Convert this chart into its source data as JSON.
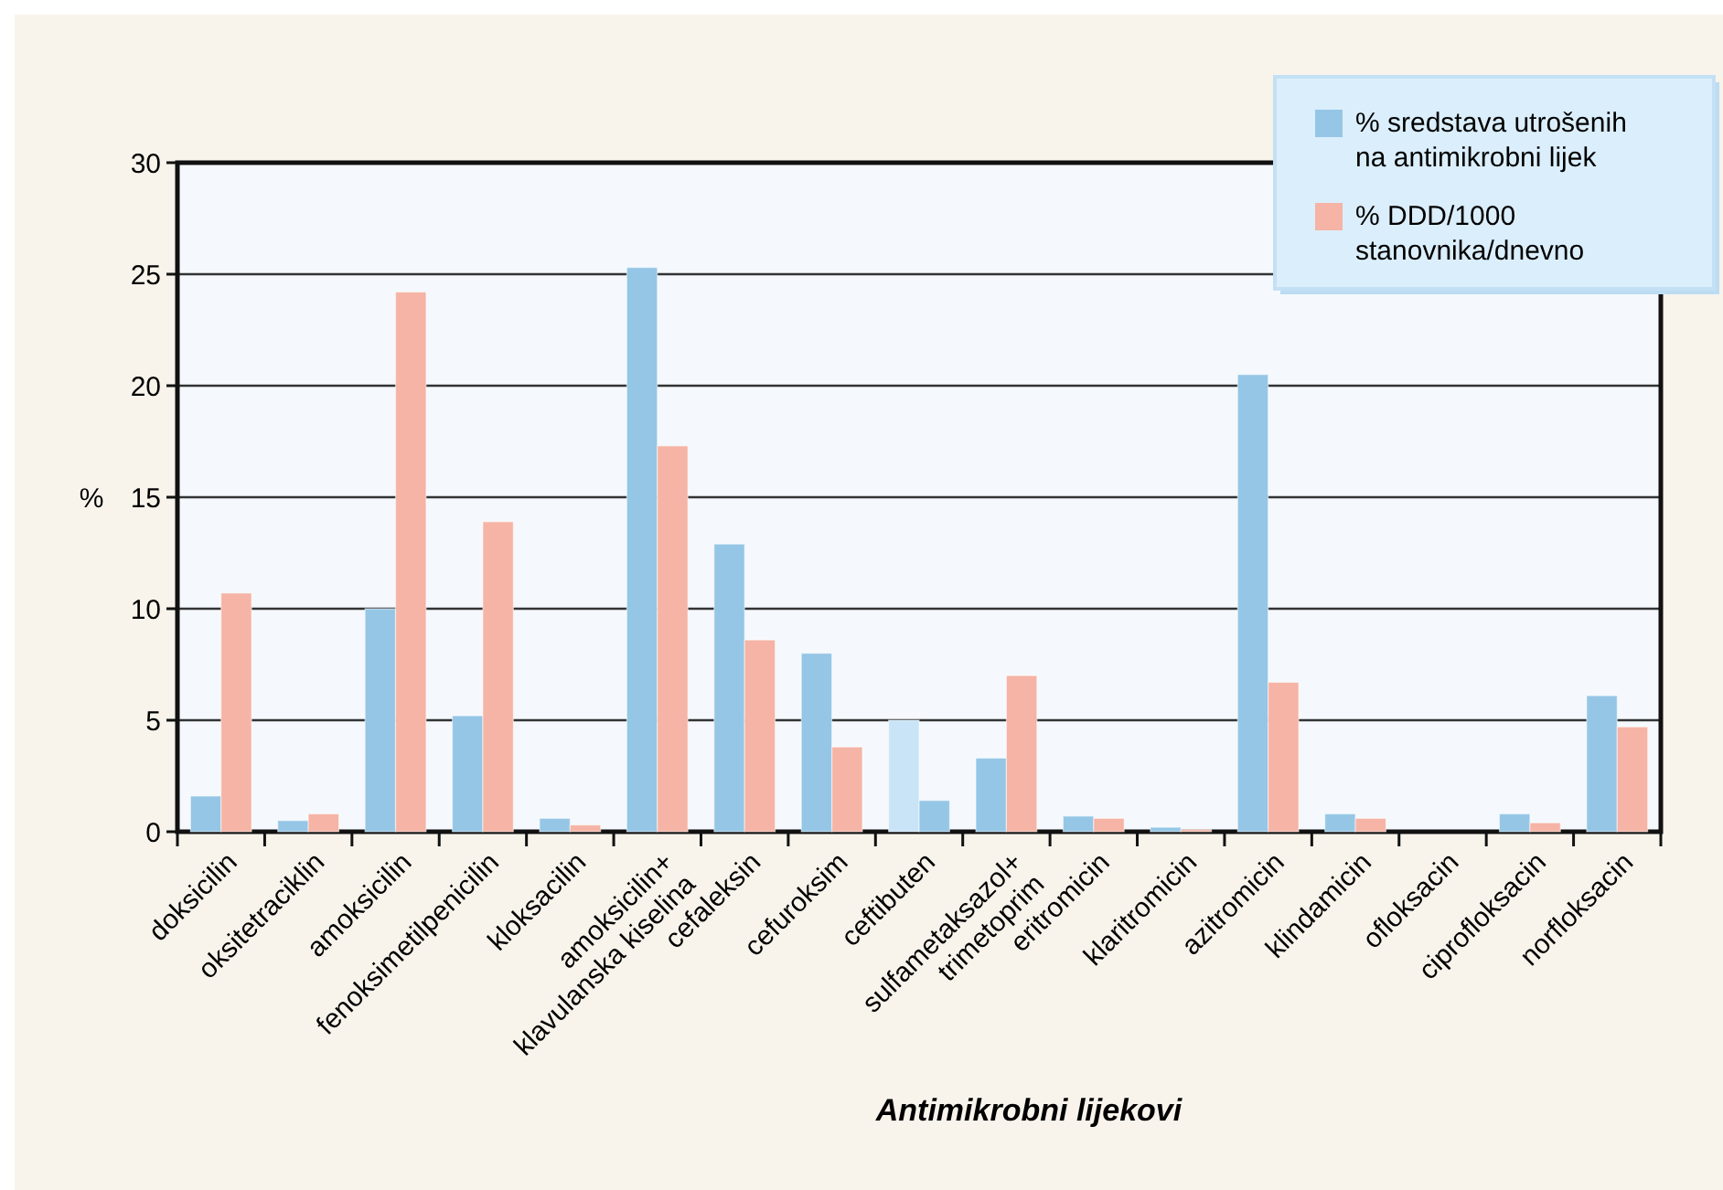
{
  "chart_data": {
    "type": "bar",
    "xlabel": "Antimikrobni lijekovi",
    "ylabel": "%",
    "categories": [
      "doksicilin",
      "oksitetraciklin",
      "amoksicilin",
      "fenoksimetilpenicilin",
      "kloksacilin",
      "amoksicilin+\nklavulanska kiselina",
      "cefaleksin",
      "cefuroksim",
      "ceftibuten",
      "sulfametaksazol+\ntrimetoprim",
      "eritromicin",
      "klaritromicin",
      "azitromicin",
      "klindamicin",
      "ofloksacin",
      "ciprofloksacin",
      "norfloksacin"
    ],
    "series": [
      {
        "name": "% sredstava utrošenih\nna antimikrobni lijek",
        "color": "#95c6e6",
        "colors": [
          "#95c6e6",
          "#95c6e6",
          "#95c6e6",
          "#95c6e6",
          "#95c6e6",
          "#95c6e6",
          "#95c6e6",
          "#95c6e6",
          "#c8e4f6",
          "#95c6e6",
          "#95c6e6",
          "#95c6e6",
          "#95c6e6",
          "#95c6e6",
          "#95c6e6",
          "#95c6e6",
          "#95c6e6"
        ],
        "values": [
          1.6,
          0.5,
          10.0,
          5.2,
          0.6,
          25.3,
          12.9,
          8.0,
          5.0,
          3.3,
          0.7,
          0.2,
          20.5,
          0.8,
          0,
          0.8,
          6.1
        ]
      },
      {
        "name": "% DDD/1000\nstanovnika/dnevno",
        "color": "#f5b4a5",
        "colors": [
          "#f5b4a5",
          "#f5b4a5",
          "#f5b4a5",
          "#f5b4a5",
          "#f5b4a5",
          "#f5b4a5",
          "#f5b4a5",
          "#f5b4a5",
          "#95c6e6",
          "#f5b4a5",
          "#f5b4a5",
          "#f5b4a5",
          "#f5b4a5",
          "#f5b4a5",
          "#f5b4a5",
          "#f5b4a5",
          "#f5b4a5"
        ],
        "values": [
          10.7,
          0.8,
          24.2,
          13.9,
          0.3,
          17.3,
          8.6,
          3.8,
          1.4,
          7.0,
          0.6,
          0.1,
          6.7,
          0.6,
          0,
          0.4,
          4.7
        ]
      }
    ],
    "ylim": [
      0,
      30
    ],
    "yticks": [
      0,
      5,
      10,
      15,
      20,
      25,
      30
    ],
    "grid": "y",
    "legend": "top right"
  }
}
